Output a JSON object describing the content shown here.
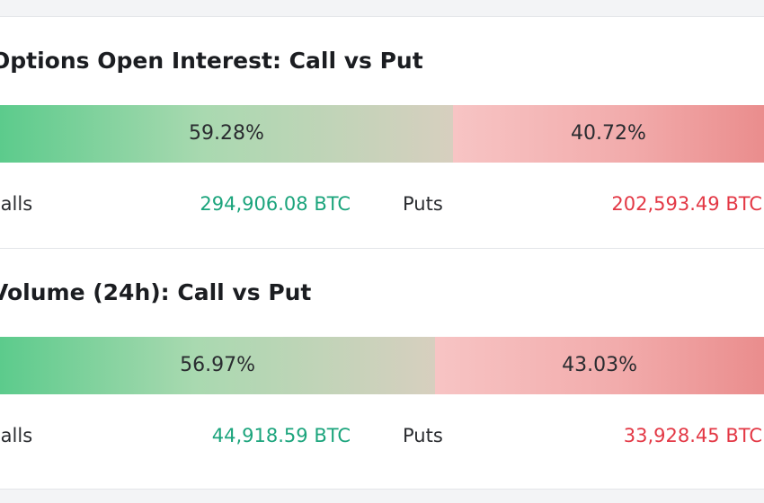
{
  "panels": [
    {
      "title": "Options Open Interest: Call vs Put",
      "calls": {
        "label": "Calls",
        "percent": 59.28,
        "percent_label": "59.28%",
        "amount": 294906.08,
        "amount_label": "294,906.08 BTC"
      },
      "puts": {
        "label": "Puts",
        "percent": 40.72,
        "percent_label": "40.72%",
        "amount": 202593.49,
        "amount_label": "202,593.49 BTC"
      }
    },
    {
      "title": "Volume (24h): Call vs Put",
      "calls": {
        "label": "Calls",
        "percent": 56.97,
        "percent_label": "56.97%",
        "amount": 44918.59,
        "amount_label": "44,918.59 BTC"
      },
      "puts": {
        "label": "Puts",
        "percent": 43.03,
        "percent_label": "43.03%",
        "amount": 33928.45,
        "amount_label": "33,928.45 BTC"
      }
    }
  ]
}
